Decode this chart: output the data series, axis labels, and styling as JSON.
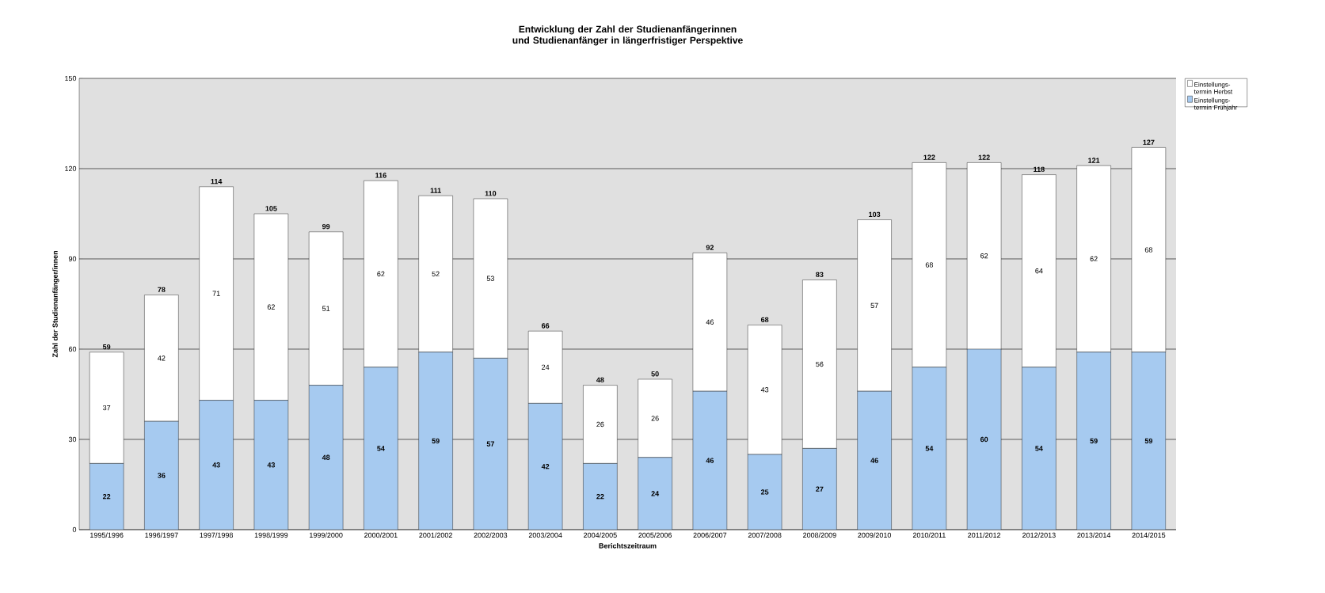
{
  "chart_data": {
    "type": "bar",
    "stacked": true,
    "title": "Entwicklung der Zahl  der Studienanfängerinnen und Studienanfänger in längerfristiger Perspektive",
    "xlabel": "Berichtszeitraum",
    "ylabel": "Zahl der Studienanfänger/innen",
    "categories": [
      "1995/1996",
      "1996/1997",
      "1997/1998",
      "1998/1999",
      "1999/2000",
      "2000/2001",
      "2001/2002",
      "2002/2003",
      "2003/2004",
      "2004/2005",
      "2005/2006",
      "2006/2007",
      "2007/2008",
      "2008/2009",
      "2009/2010",
      "2010/2011",
      "2011/2012",
      "2012/2013",
      "2013/2014",
      "2014/2015"
    ],
    "series": [
      {
        "name": "Einstellungs- termin Frühjahr",
        "color": "#a6caf0",
        "values": [
          22,
          36,
          43,
          43,
          48,
          54,
          59,
          57,
          42,
          22,
          24,
          46,
          25,
          27,
          46,
          54,
          60,
          54,
          59,
          59
        ]
      },
      {
        "name": "Einstellungs- termin Herbst",
        "color": "#ffffff",
        "values": [
          37,
          42,
          71,
          62,
          51,
          62,
          52,
          53,
          24,
          26,
          26,
          46,
          43,
          56,
          57,
          68,
          62,
          64,
          62,
          68
        ]
      }
    ],
    "totals": [
      "59",
      "78",
      "114",
      "105",
      "99",
      "116",
      "111",
      "110",
      "66",
      "48",
      "50",
      "92",
      "68",
      "83",
      "103",
      "122",
      "122",
      "118",
      "121",
      "127"
    ],
    "data_labels": true,
    "ylim": [
      0,
      150
    ],
    "yticks": [
      0,
      30,
      60,
      90,
      120,
      150
    ],
    "grid": "y",
    "legend": "top right"
  }
}
